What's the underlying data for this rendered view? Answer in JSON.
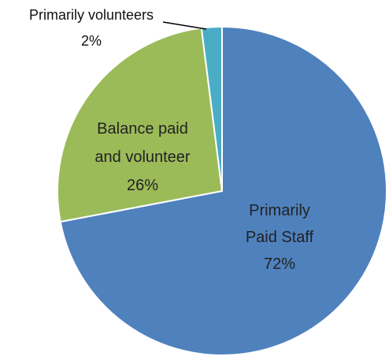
{
  "chart_data": {
    "type": "pie",
    "slices": [
      {
        "name": "Primarily Paid Staff",
        "name_lines": [
          "Primarily",
          "Paid Staff"
        ],
        "value": 72,
        "value_label": "72%",
        "color": "#4F81BD"
      },
      {
        "name": "Balance paid and volunteer",
        "name_lines": [
          "Balance paid",
          "and volunteer"
        ],
        "value": 26,
        "value_label": "26%",
        "color": "#9BBB59"
      },
      {
        "name": "Primarily volunteers",
        "name_lines": [
          "Primarily volunteers"
        ],
        "value": 2,
        "value_label": "2%",
        "color": "#4BACC6"
      }
    ],
    "start_angle_deg": 0,
    "direction": "clockwise",
    "legend": "none"
  }
}
